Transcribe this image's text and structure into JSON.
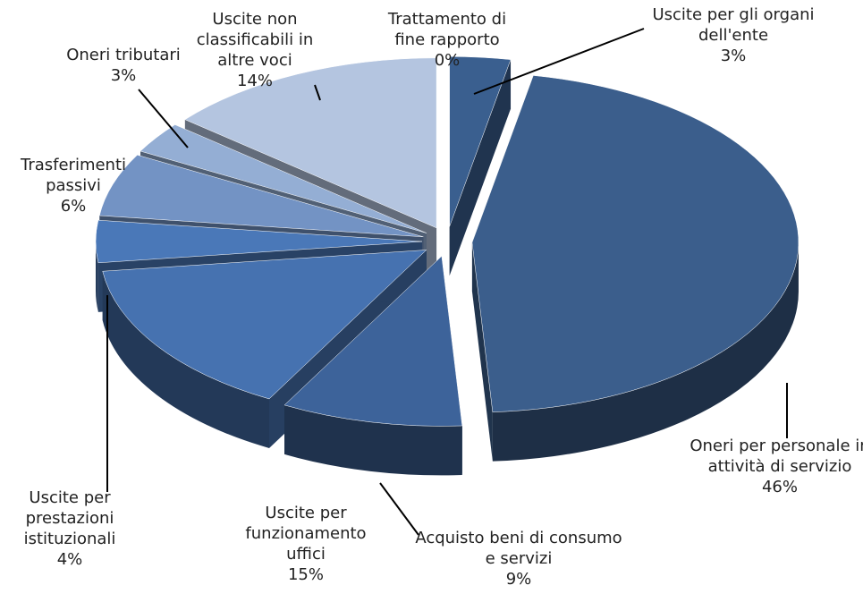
{
  "chart_data": {
    "type": "pie",
    "categories": [
      "Uscite per gli organi dell'ente",
      "Oneri per personale in attività di servizio",
      "Acquisto beni di consumo e servizi",
      "Uscite per funzionamento uffici",
      "Uscite per prestazioni istituzionali",
      "Trasferimenti passivi",
      "Oneri tributari",
      "Uscite non classificabili in altre voci",
      "Trattamento di fine rapporto"
    ],
    "values": [
      3,
      46,
      9,
      15,
      4,
      6,
      3,
      14,
      0
    ],
    "value_labels": [
      "3%",
      "46%",
      "9%",
      "15%",
      "4%",
      "6%",
      "3%",
      "14%",
      "0%"
    ],
    "colors": [
      "#3a5f8f",
      "#3b5e8c",
      "#3d639a",
      "#4672b0",
      "#4a78b8",
      "#7393c4",
      "#94aed4",
      "#b4c5e0",
      "#c8d4e8"
    ]
  }
}
